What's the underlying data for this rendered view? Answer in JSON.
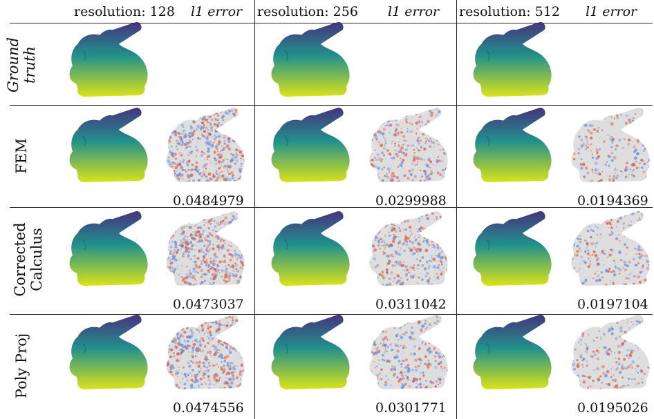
{
  "columns": [
    {
      "resolution_label": "resolution: 128",
      "error_label": "l1 error"
    },
    {
      "resolution_label": "resolution: 256",
      "error_label": "l1 error"
    },
    {
      "resolution_label": "resolution: 512",
      "error_label": "l1 error"
    }
  ],
  "rows": [
    {
      "label_line1": "Ground",
      "label_line2": "truth",
      "italic": true,
      "errors": []
    },
    {
      "label_line1": "FEM",
      "label_line2": "",
      "italic": false,
      "errors": [
        "0.0484979",
        "0.0299988",
        "0.0194369"
      ]
    },
    {
      "label_line1": "Corrected",
      "label_line2": "Calculus",
      "italic": false,
      "errors": [
        "0.0473037",
        "0.0311042",
        "0.0197104"
      ]
    },
    {
      "label_line1": "Poly Proj",
      "label_line2": "",
      "italic": false,
      "errors": [
        "0.0474556",
        "0.0301771",
        "0.0195026"
      ]
    }
  ],
  "colors": {
    "viridis_top": "#46337e",
    "viridis_mid": "#21918c",
    "viridis_bottom": "#dde318",
    "error_base": "#dedede",
    "error_red": "#d6604d",
    "error_blue": "#6a8fd9"
  }
}
